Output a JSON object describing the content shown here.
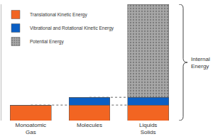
{
  "chart_data": {
    "type": "bar",
    "stacked": true,
    "categories": [
      "Monoatomic\nGas",
      "Molecules",
      "Liquids\nSolids"
    ],
    "series": [
      {
        "name": "Translational Kinetic Energy",
        "color": "#f26522",
        "values": [
          2,
          2,
          2
        ]
      },
      {
        "name": "Vibrational and Rotational Kinetic Energy",
        "color": "#0b5fc4",
        "values": [
          0,
          1,
          1
        ]
      },
      {
        "name": "Potential Energy",
        "color": "#a8a8a8",
        "values": [
          0,
          0,
          12
        ]
      }
    ],
    "ylim": [
      0,
      15
    ],
    "yticks": [],
    "tick_labels": "x",
    "grid": false,
    "legend": "top-left",
    "annotations": [
      "Internal\nEnergy"
    ]
  }
}
